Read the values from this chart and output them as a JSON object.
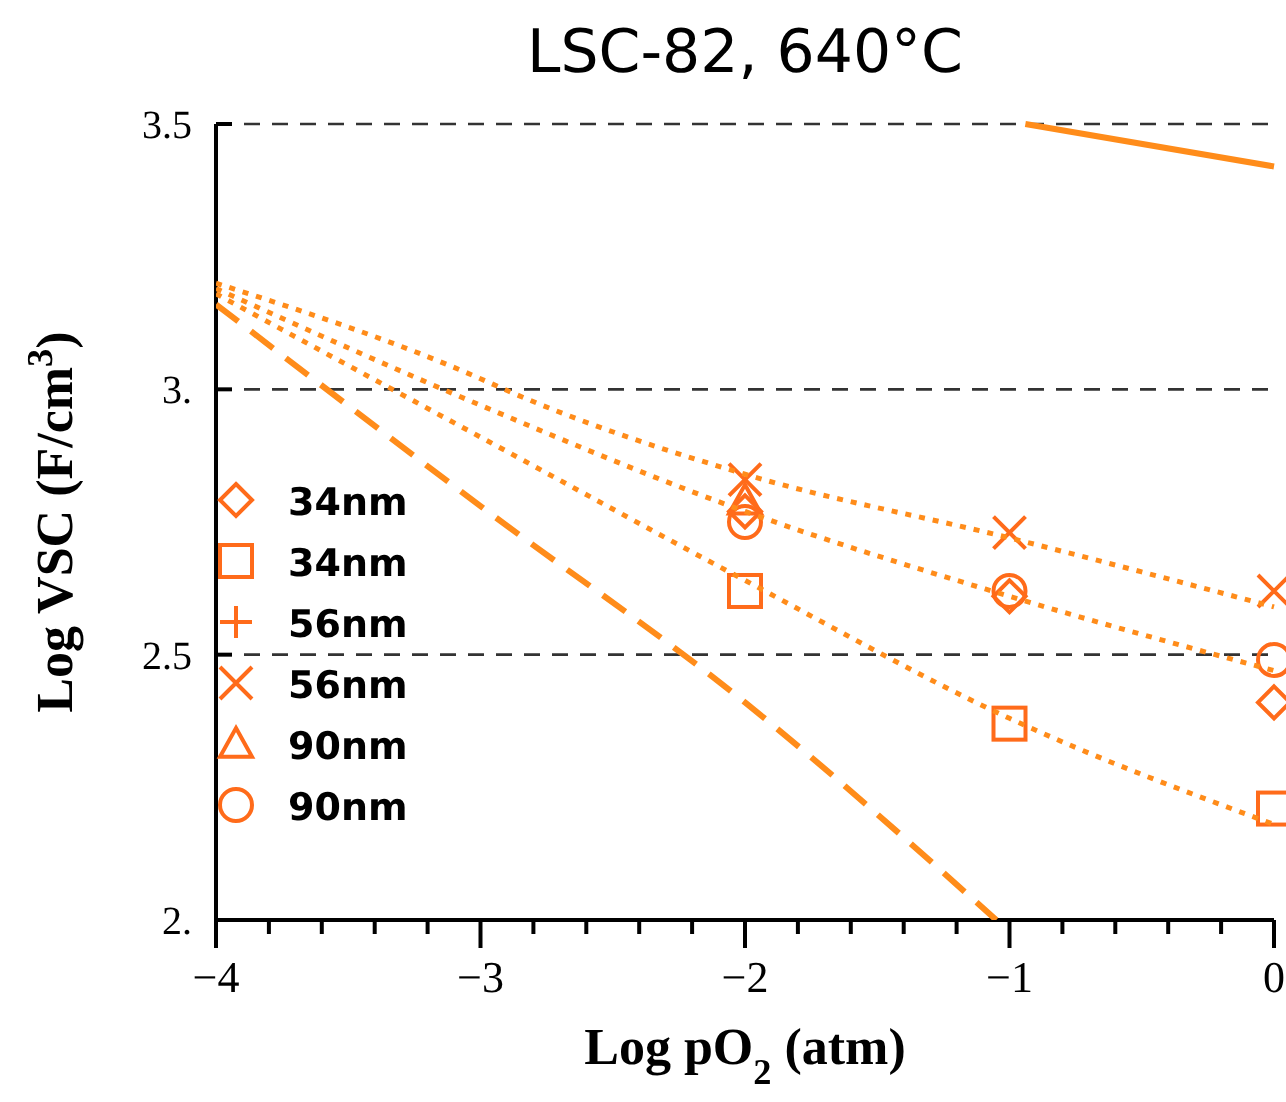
{
  "chart_data": {
    "type": "scatter",
    "title": "LSC-82, 640°C",
    "xlabel": "Log pO$_{2}$ (atm)",
    "ylabel": "Log VSC (F/cm$^{3}$)",
    "xlim": [
      -4,
      0
    ],
    "ylim": [
      2,
      3.5
    ],
    "xticks": [
      {
        "value": -4,
        "label": "−4"
      },
      {
        "value": -3.8,
        "label": null
      },
      {
        "value": -3.6,
        "label": null
      },
      {
        "value": -3.4,
        "label": null
      },
      {
        "value": -3.2,
        "label": null
      },
      {
        "value": -3,
        "label": "−3"
      },
      {
        "value": -2.8,
        "label": null
      },
      {
        "value": -2.6,
        "label": null
      },
      {
        "value": -2.4,
        "label": null
      },
      {
        "value": -2.2,
        "label": null
      },
      {
        "value": -2,
        "label": "−2"
      },
      {
        "value": -1.8,
        "label": null
      },
      {
        "value": -1.6,
        "label": null
      },
      {
        "value": -1.4,
        "label": null
      },
      {
        "value": -1.2,
        "label": null
      },
      {
        "value": -1,
        "label": "−1"
      },
      {
        "value": -0.8,
        "label": null
      },
      {
        "value": -0.6,
        "label": null
      },
      {
        "value": -0.4,
        "label": null
      },
      {
        "value": -0.2,
        "label": null
      },
      {
        "value": 0,
        "label": "0"
      }
    ],
    "yticks": [
      {
        "value": 2,
        "label": "2."
      },
      2.5,
      {
        "value": 3,
        "label": "3."
      },
      3.5
    ],
    "grid": "y",
    "legend": "left",
    "series": [
      {
        "name": "34nm",
        "color": "#ff6b1a",
        "marker": "diamond",
        "x": [
          -2,
          -1,
          0
        ],
        "values": [
          2.77,
          2.61,
          2.41
        ]
      },
      {
        "name": "34nm",
        "color": "#ff6b1a",
        "marker": "square",
        "x": [
          -2,
          -1,
          0
        ],
        "values": [
          2.62,
          2.37,
          2.21
        ]
      },
      {
        "name": "56nm",
        "color": "#ff6b1a",
        "marker": "plus"
      },
      {
        "name": "56nm",
        "color": "#ff6b1a",
        "marker": "cross",
        "x": [
          -2,
          -1,
          0
        ],
        "values": [
          2.83,
          2.73,
          2.62
        ]
      },
      {
        "name": "90nm",
        "color": "#ff6b1a",
        "marker": "triangle",
        "x": [
          -2
        ],
        "values": [
          2.79
        ]
      },
      {
        "name": "90nm",
        "color": "#ff6b1a",
        "marker": "circle",
        "x": [
          -2,
          -1,
          0
        ],
        "values": [
          2.75,
          2.62,
          2.49
        ]
      },
      {
        "type": "line",
        "color": "#ff8c1a",
        "line_style": "dotted",
        "x": [
          -4,
          -3,
          -2.91,
          -2,
          -1,
          0
        ],
        "values": [
          3.2,
          3.02,
          3.0,
          2.84,
          2.72,
          2.59
        ]
      },
      {
        "type": "line",
        "color": "#ff8c1a",
        "line_style": "dotted",
        "x": [
          -4,
          -3,
          -2,
          -1,
          0
        ],
        "values": [
          3.19,
          2.97,
          2.77,
          2.61,
          2.47
        ]
      },
      {
        "type": "line",
        "color": "#ff8c1a",
        "line_style": "dotted",
        "x": [
          -4,
          -3,
          -2,
          -1,
          0
        ],
        "values": [
          3.18,
          2.91,
          2.64,
          2.38,
          2.18
        ]
      },
      {
        "type": "line",
        "color": "#ff8c1a",
        "line_style": "dashed",
        "x": [
          -4,
          -3,
          -2,
          -1.05
        ],
        "values": [
          3.16,
          2.78,
          2.41,
          2.0
        ]
      },
      {
        "type": "line",
        "color": "#ff8c1a",
        "line_style": "solid",
        "x": [
          -0.94,
          0
        ],
        "values": [
          3.5,
          3.42
        ]
      }
    ]
  }
}
